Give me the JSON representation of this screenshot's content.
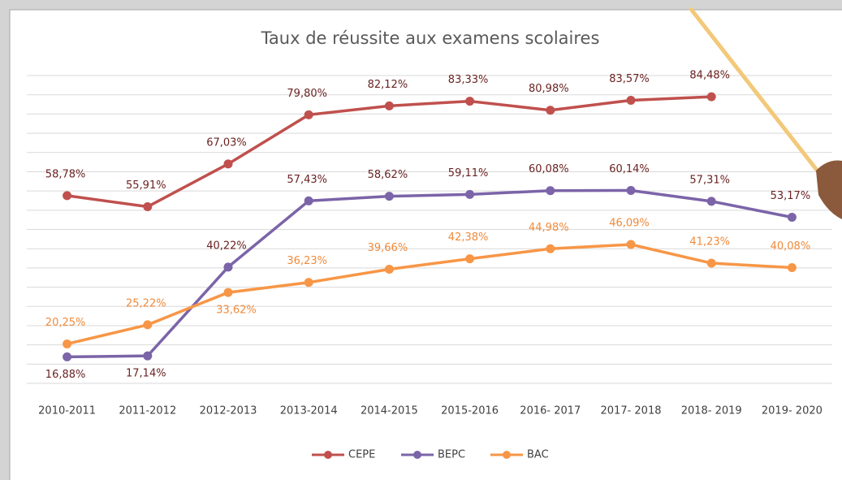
{
  "chart_data": {
    "type": "line",
    "title": "Taux de réussite aux examens scolaires",
    "categories": [
      "2010-2011",
      "2011-2012",
      "2012-2013",
      "2013-2014",
      "2014-2015",
      "2015-2016",
      "2016- 2017",
      "2017- 2018",
      "2018- 2019",
      "2019- 2020"
    ],
    "series": [
      {
        "name": "CEPE",
        "color": "#c0504d",
        "values": [
          58.78,
          55.91,
          67.03,
          79.8,
          82.12,
          83.33,
          80.98,
          83.57,
          84.48,
          null
        ],
        "value_labels": [
          "58,78%",
          "55,91%",
          "67,03%",
          "79,80%",
          "82,12%",
          "83,33%",
          "80,98%",
          "83,57%",
          "84,48%",
          null
        ]
      },
      {
        "name": "BEPC",
        "color": "#7b64a8",
        "values": [
          16.88,
          17.14,
          40.22,
          57.43,
          58.62,
          59.11,
          60.08,
          60.14,
          57.31,
          53.17
        ],
        "value_labels": [
          "16,88%",
          "17,14%",
          "40,22%",
          "57,43%",
          "58,62%",
          "59,11%",
          "60,08%",
          "60,14%",
          "57,31%",
          "53,17%"
        ]
      },
      {
        "name": "BAC",
        "color": "#f79646",
        "values": [
          20.25,
          25.22,
          33.62,
          36.23,
          39.66,
          42.38,
          44.98,
          46.09,
          41.23,
          40.08
        ],
        "value_labels": [
          "20,25%",
          "25,22%",
          "33,62%",
          "36,23%",
          "39,66%",
          "42,38%",
          "44,98%",
          "46,09%",
          "41,23%",
          "40,08%"
        ]
      }
    ],
    "ylim": [
      10,
      90
    ],
    "yticks": [
      10,
      15,
      20,
      25,
      30,
      35,
      40,
      45,
      50,
      55,
      60,
      65,
      70,
      75,
      80,
      85,
      90
    ],
    "grid": true,
    "legend": "bottom"
  }
}
